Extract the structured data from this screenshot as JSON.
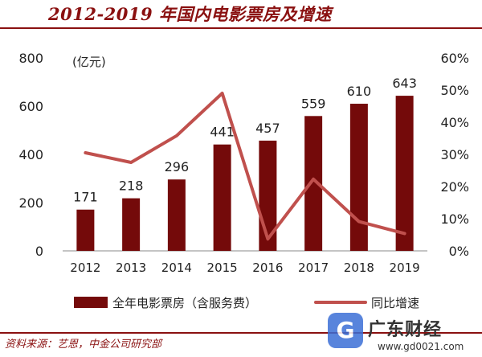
{
  "title": "2012-2019 年国内电影票房及增速",
  "source": "资料来源：艺恩，中金公司研究部",
  "watermark": {
    "icon": "g-logo-icon",
    "icon_glyph": "G",
    "brand": "广东财经",
    "url": "www.gd0021.com"
  },
  "colors": {
    "bar": "#740a0a",
    "line": "#c0504d",
    "title": "#8a1010"
  },
  "chart_data": {
    "type": "bar",
    "categories": [
      "2012",
      "2013",
      "2014",
      "2015",
      "2016",
      "2017",
      "2018",
      "2019"
    ],
    "series": [
      {
        "name": "全年电影票房（含服务费）",
        "type": "bar",
        "axis": "left",
        "values": [
          171,
          218,
          296,
          441,
          457,
          559,
          610,
          643
        ],
        "labels": [
          "171",
          "218",
          "296",
          "441",
          "457",
          "559",
          "610",
          "643"
        ]
      },
      {
        "name": "同比增速",
        "type": "line",
        "axis": "right",
        "values": [
          30.5,
          27.5,
          35.8,
          49,
          3.7,
          22.3,
          9.1,
          5.4
        ]
      }
    ],
    "ylabel": "(亿元)",
    "ylim": [
      0,
      800
    ],
    "yticks": [
      "0",
      "200",
      "400",
      "600",
      "800"
    ],
    "y2lim": [
      0,
      60
    ],
    "y2ticks": [
      "0%",
      "10%",
      "20%",
      "30%",
      "40%",
      "50%",
      "60%"
    ],
    "grid": false,
    "legend": "bottom"
  }
}
